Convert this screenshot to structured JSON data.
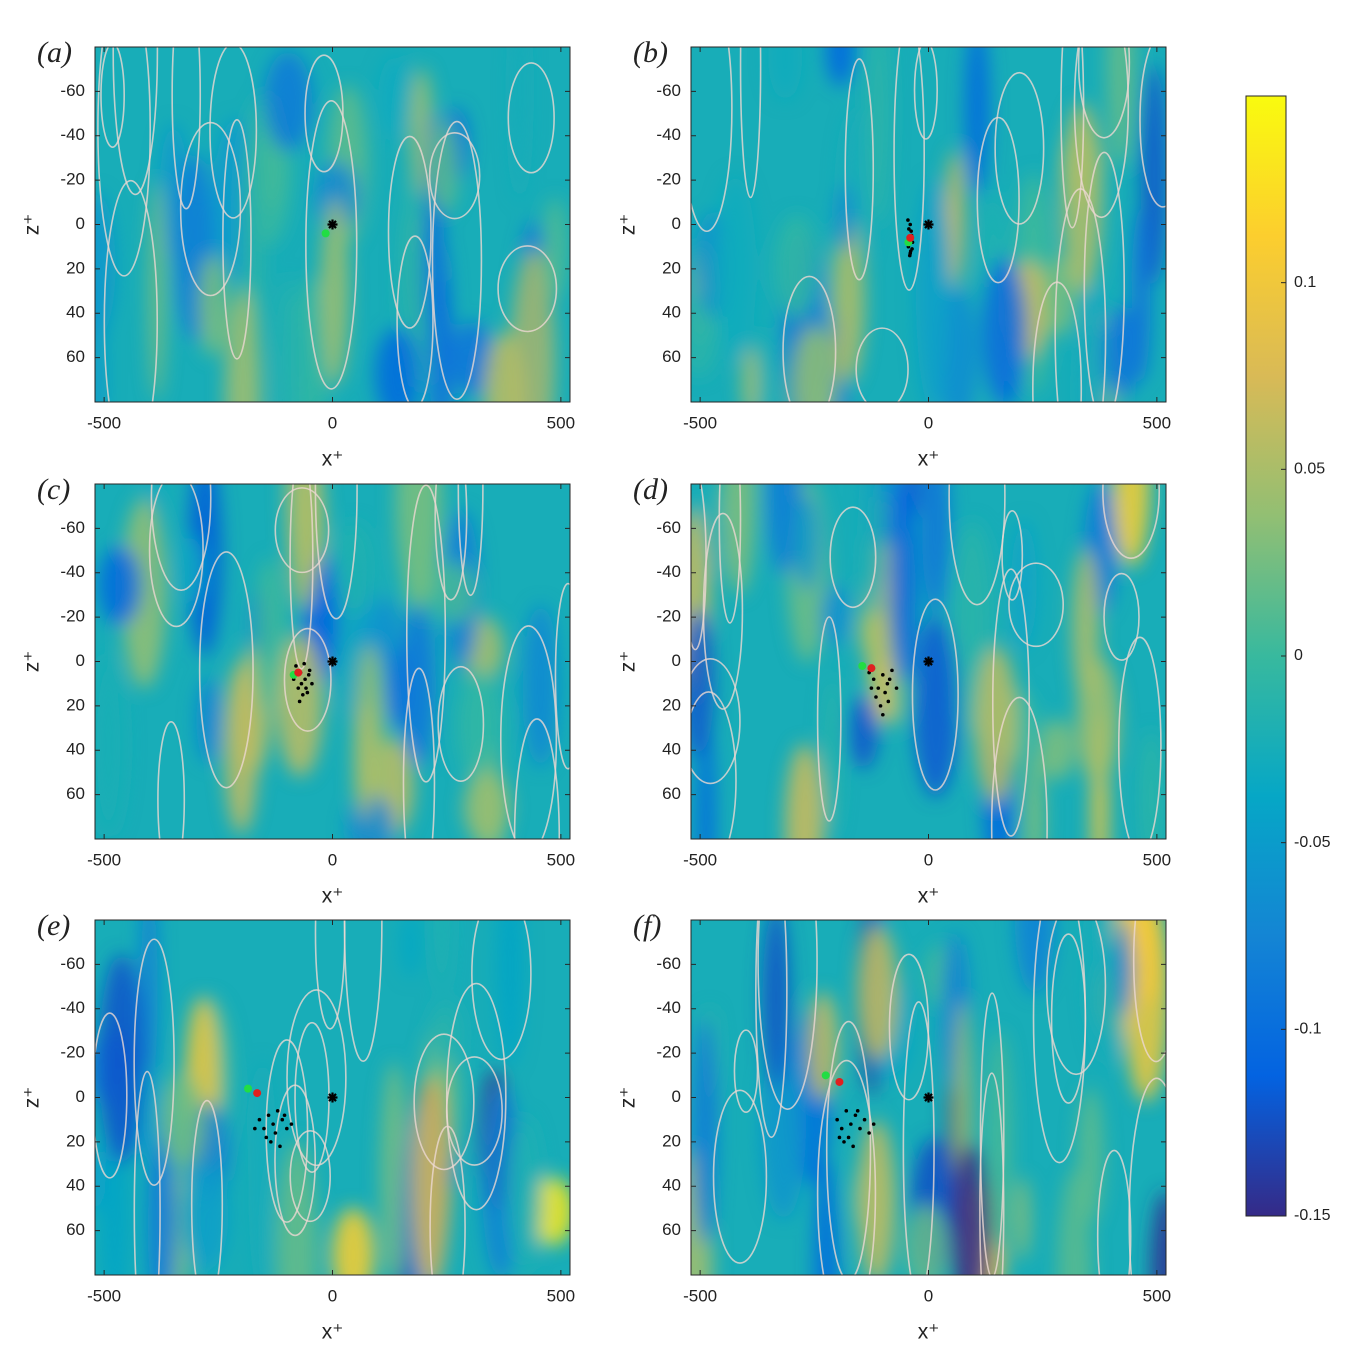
{
  "chart_data": [
    {
      "type": "contour",
      "panel_label": "(a)",
      "xlabel": "x⁺",
      "ylabel": "z⁺",
      "xlim": [
        -520,
        520
      ],
      "ylim": [
        -80,
        80
      ],
      "y_reversed": true,
      "xticks": [
        -500,
        0,
        500
      ],
      "yticks": [
        -60,
        -40,
        -20,
        0,
        20,
        40,
        60
      ],
      "series": [
        {
          "marker": "star",
          "color": "#000000",
          "x": [
            0
          ],
          "y": [
            0
          ]
        },
        {
          "marker": "dot",
          "color": "#22dd44",
          "x": [
            -15
          ],
          "y": [
            4
          ]
        }
      ]
    },
    {
      "type": "contour",
      "panel_label": "(b)",
      "xlabel": "x⁺",
      "ylabel": "z⁺",
      "xlim": [
        -520,
        520
      ],
      "ylim": [
        -80,
        80
      ],
      "y_reversed": true,
      "xticks": [
        -500,
        0,
        500
      ],
      "yticks": [
        -60,
        -40,
        -20,
        0,
        20,
        40,
        60
      ],
      "series": [
        {
          "marker": "star",
          "color": "#000000",
          "x": [
            0
          ],
          "y": [
            0
          ]
        },
        {
          "marker": "particle",
          "color": "#000000",
          "x": [
            -45,
            -40,
            -38,
            -42,
            -35,
            -44,
            -39,
            -41,
            -37,
            -43,
            -36,
            -40
          ],
          "y": [
            -2,
            0,
            3,
            6,
            8,
            10,
            12,
            14,
            5,
            2,
            11,
            13
          ]
        },
        {
          "marker": "dot",
          "color": "#22dd44",
          "x": [
            -44
          ],
          "y": [
            8
          ]
        },
        {
          "marker": "dot",
          "color": "#e02020",
          "x": [
            -40
          ],
          "y": [
            6
          ]
        }
      ]
    },
    {
      "type": "contour",
      "panel_label": "(c)",
      "xlabel": "x⁺",
      "ylabel": "z⁺",
      "xlim": [
        -520,
        520
      ],
      "ylim": [
        -80,
        80
      ],
      "y_reversed": true,
      "xticks": [
        -500,
        0,
        500
      ],
      "yticks": [
        -60,
        -40,
        -20,
        0,
        20,
        40,
        60
      ],
      "series": [
        {
          "marker": "star",
          "color": "#000000",
          "x": [
            0
          ],
          "y": [
            0
          ]
        },
        {
          "marker": "particle",
          "color": "#000000",
          "x": [
            -80,
            -70,
            -60,
            -50,
            -45,
            -75,
            -65,
            -55,
            -85,
            -62,
            -72,
            -52,
            -68,
            -58
          ],
          "y": [
            2,
            5,
            8,
            4,
            10,
            12,
            15,
            14,
            8,
            1,
            18,
            6,
            10,
            12
          ]
        },
        {
          "marker": "dot",
          "color": "#22dd44",
          "x": [
            -85
          ],
          "y": [
            6
          ]
        },
        {
          "marker": "dot",
          "color": "#e02020",
          "x": [
            -75
          ],
          "y": [
            5
          ]
        }
      ]
    },
    {
      "type": "contour",
      "panel_label": "(d)",
      "xlabel": "x⁺",
      "ylabel": "z⁺",
      "xlim": [
        -520,
        520
      ],
      "ylim": [
        -80,
        80
      ],
      "y_reversed": true,
      "xticks": [
        -500,
        0,
        500
      ],
      "yticks": [
        -60,
        -40,
        -20,
        0,
        20,
        40,
        60
      ],
      "series": [
        {
          "marker": "star",
          "color": "#000000",
          "x": [
            0
          ],
          "y": [
            0
          ]
        },
        {
          "marker": "particle",
          "color": "#000000",
          "x": [
            -130,
            -120,
            -110,
            -100,
            -90,
            -80,
            -70,
            -115,
            -105,
            -95,
            -85,
            -125,
            -100,
            -88
          ],
          "y": [
            5,
            8,
            12,
            6,
            10,
            4,
            12,
            16,
            20,
            14,
            8,
            12,
            24,
            18
          ]
        },
        {
          "marker": "dot",
          "color": "#22dd44",
          "x": [
            -145
          ],
          "y": [
            2
          ]
        },
        {
          "marker": "dot",
          "color": "#e02020",
          "x": [
            -125
          ],
          "y": [
            3
          ]
        }
      ]
    },
    {
      "type": "contour",
      "panel_label": "(e)",
      "xlabel": "x⁺",
      "ylabel": "z⁺",
      "xlim": [
        -520,
        520
      ],
      "ylim": [
        -80,
        80
      ],
      "y_reversed": true,
      "xticks": [
        -500,
        0,
        500
      ],
      "yticks": [
        -60,
        -40,
        -20,
        0,
        20,
        40,
        60
      ],
      "series": [
        {
          "marker": "star",
          "color": "#000000",
          "x": [
            0
          ],
          "y": [
            0
          ]
        },
        {
          "marker": "particle",
          "color": "#000000",
          "x": [
            -160,
            -150,
            -140,
            -130,
            -120,
            -110,
            -100,
            -90,
            -135,
            -125,
            -115,
            -145,
            -105,
            -170
          ],
          "y": [
            10,
            14,
            8,
            12,
            6,
            10,
            14,
            12,
            20,
            16,
            22,
            18,
            8,
            14
          ]
        },
        {
          "marker": "dot",
          "color": "#22dd44",
          "x": [
            -185
          ],
          "y": [
            -4
          ]
        },
        {
          "marker": "dot",
          "color": "#e02020",
          "x": [
            -165
          ],
          "y": [
            -2
          ]
        }
      ]
    },
    {
      "type": "contour",
      "panel_label": "(f)",
      "xlabel": "x⁺",
      "ylabel": "z⁺",
      "xlim": [
        -520,
        520
      ],
      "ylim": [
        -80,
        80
      ],
      "y_reversed": true,
      "xticks": [
        -500,
        0,
        500
      ],
      "yticks": [
        -60,
        -40,
        -20,
        0,
        20,
        40,
        60
      ],
      "series": [
        {
          "marker": "star",
          "color": "#000000",
          "x": [
            0
          ],
          "y": [
            0
          ]
        },
        {
          "marker": "particle",
          "color": "#000000",
          "x": [
            -200,
            -190,
            -180,
            -170,
            -160,
            -150,
            -140,
            -130,
            -120,
            -185,
            -175,
            -165,
            -155,
            -195
          ],
          "y": [
            10,
            14,
            6,
            12,
            8,
            14,
            10,
            16,
            12,
            20,
            18,
            22,
            6,
            18
          ]
        },
        {
          "marker": "dot",
          "color": "#22dd44",
          "x": [
            -225
          ],
          "y": [
            -10
          ]
        },
        {
          "marker": "dot",
          "color": "#e02020",
          "x": [
            -195
          ],
          "y": [
            -7
          ]
        }
      ]
    },
    {
      "type": "colorbar",
      "ylim": [
        -0.15,
        0.15
      ],
      "yticks": [
        -0.15,
        -0.1,
        -0.05,
        0,
        0.05,
        0.1
      ],
      "colormap": [
        "#352a87",
        "#0363e1",
        "#1485d4",
        "#06a7c6",
        "#38b99e",
        "#92bf73",
        "#d9ba56",
        "#fcce2e",
        "#f9fb0e"
      ]
    }
  ]
}
